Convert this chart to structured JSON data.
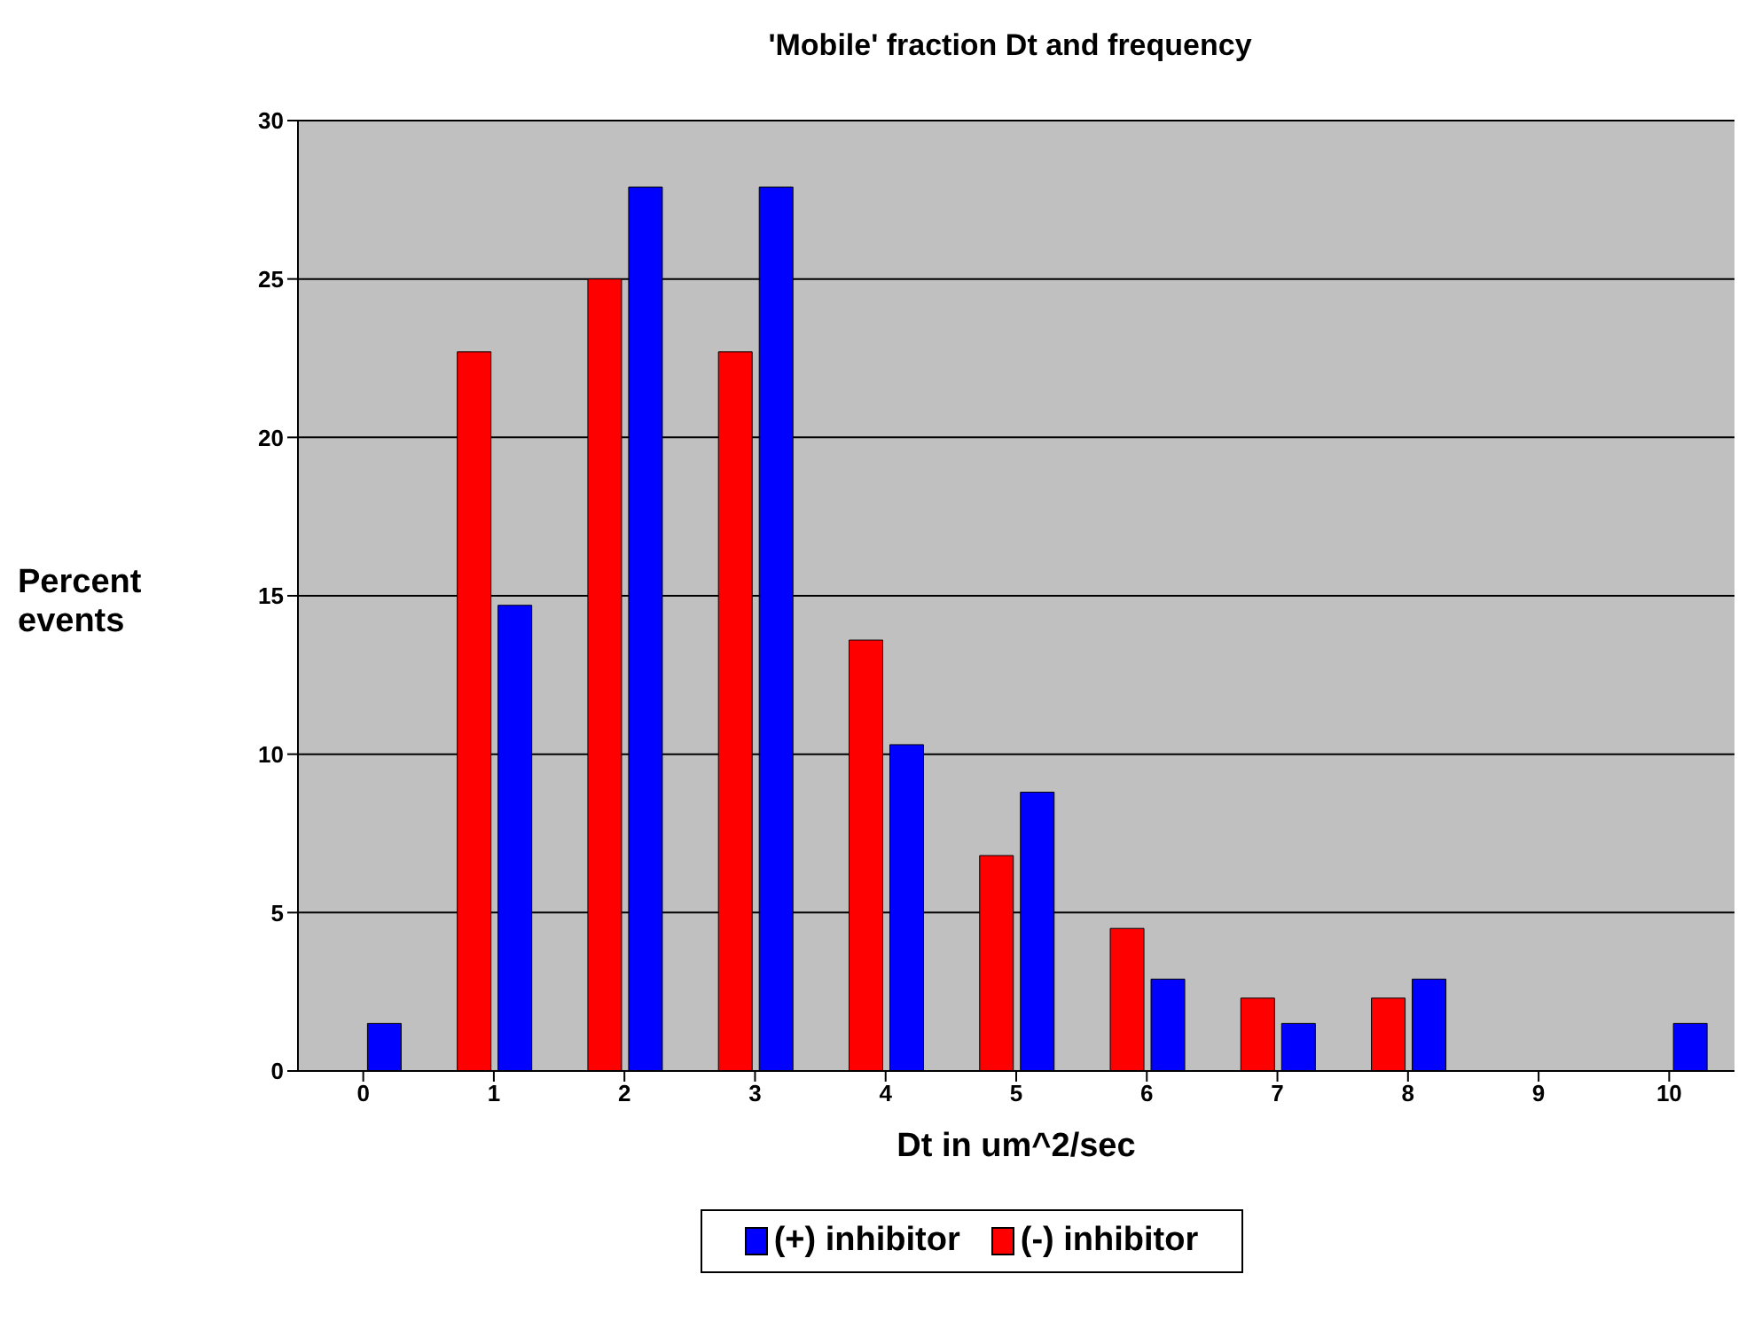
{
  "chart_data": {
    "type": "bar",
    "title": "'Mobile' fraction Dt and frequency",
    "xlabel": "Dt in um^2/sec",
    "ylabel": "Percent events",
    "categories": [
      "0",
      "1",
      "2",
      "3",
      "4",
      "5",
      "6",
      "7",
      "8",
      "9",
      "10"
    ],
    "series": [
      {
        "name": "(-) inhibitor",
        "color": "#ff0000",
        "values": [
          0,
          22.7,
          25,
          22.7,
          13.6,
          6.8,
          4.5,
          2.3,
          2.3,
          0,
          0
        ]
      },
      {
        "name": "(+) inhibitor",
        "color": "#0000ff",
        "values": [
          1.5,
          14.7,
          27.9,
          27.9,
          10.3,
          8.8,
          2.9,
          1.5,
          2.9,
          0,
          1.5
        ]
      }
    ],
    "ylim": [
      0,
      30
    ],
    "yticks": [
      0,
      5,
      10,
      15,
      20,
      25,
      30
    ],
    "grid": "y",
    "legend": "bottom"
  }
}
